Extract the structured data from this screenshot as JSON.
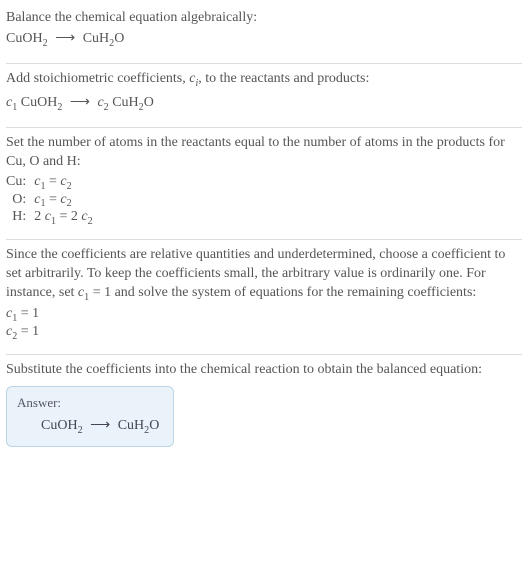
{
  "section1": {
    "line1": "Balance the chemical equation algebraically:",
    "reaction_left": "CuOH",
    "reaction_left_sub": "2",
    "arrow": "⟶",
    "reaction_right": "CuH",
    "reaction_right_sub1": "2",
    "reaction_right_mid": "O"
  },
  "section2": {
    "para_a": "Add stoichiometric coefficients, ",
    "ci_c": "c",
    "ci_i": "i",
    "para_b": ", to the reactants and products:",
    "c1_c": "c",
    "c1_1": "1",
    "left_sp": " CuOH",
    "left_sub": "2",
    "arrow": "⟶",
    "c2_c": "c",
    "c2_2": "2",
    "right_sp": " CuH",
    "right_sub": "2",
    "right_mid": "O"
  },
  "section3": {
    "para": "Set the number of atoms in the reactants equal to the number of atoms in the products for Cu, O and H:",
    "rows": {
      "cu_label": "Cu:",
      "cu_eq_l_c": "c",
      "cu_eq_l_1": "1",
      "cu_eq_eq": " = ",
      "cu_eq_r_c": "c",
      "cu_eq_r_2": "2",
      "o_label": "O:",
      "o_eq_l_c": "c",
      "o_eq_l_1": "1",
      "o_eq_eq": " = ",
      "o_eq_r_c": "c",
      "o_eq_r_2": "2",
      "h_label": "H:",
      "h_eq_l_2": "2 ",
      "h_eq_l_c": "c",
      "h_eq_l_1": "1",
      "h_eq_eq": " = ",
      "h_eq_r_2": "2 ",
      "h_eq_r_c": "c",
      "h_eq_r_2b": "2"
    }
  },
  "section4": {
    "para_a": "Since the coefficients are relative quantities and underdetermined, choose a coefficient to set arbitrarily. To keep the coefficients small, the arbitrary value is ordinarily one. For instance, set ",
    "c1_c": "c",
    "c1_1": "1",
    "para_b": " = 1 and solve the system of equations for the remaining coefficients:",
    "line1_c": "c",
    "line1_1": "1",
    "line1_rest": " = 1",
    "line2_c": "c",
    "line2_2": "2",
    "line2_rest": " = 1"
  },
  "section5": {
    "para": "Substitute the coefficients into the chemical reaction to obtain the balanced equation:",
    "answer_label": "Answer:",
    "reaction_left": "CuOH",
    "reaction_left_sub": "2",
    "arrow": "⟶",
    "reaction_right": "CuH",
    "reaction_right_sub": "2",
    "reaction_right_mid": "O"
  }
}
